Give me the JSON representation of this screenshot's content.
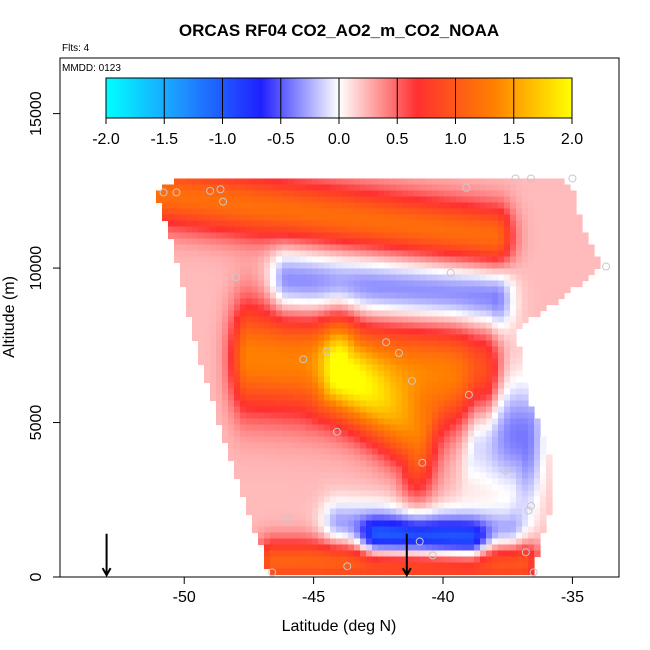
{
  "chart_data": {
    "type": "heatmap",
    "title": "ORCAS RF04 CO2_AO2_m_CO2_NOAA",
    "flights_label": "Flts: 4",
    "date_label": "MMDD: 0123",
    "xlabel": "Latitude (deg N)",
    "ylabel": "Altitude (m)",
    "xlim": [
      -54.8,
      -33.2
    ],
    "ylim": [
      0,
      16800
    ],
    "x_ticks": [
      -50,
      -45,
      -40,
      -35
    ],
    "x_tick_labels": [
      "-50",
      "-45",
      "-40",
      "-35"
    ],
    "y_ticks": [
      0,
      5000,
      10000,
      15000
    ],
    "y_tick_labels": [
      "0",
      "5000",
      "10000",
      "15000"
    ],
    "colorbar": {
      "range": [
        -2.0,
        2.0
      ],
      "ticks": [
        -2.0,
        -1.5,
        -1.0,
        -0.5,
        0.0,
        0.5,
        1.0,
        1.5,
        2.0
      ],
      "tick_labels": [
        "-2.0",
        "-1.5",
        "-1.0",
        "-0.5",
        "0.0",
        "0.5",
        "1.0",
        "1.5",
        "2.0"
      ],
      "colors": [
        "#00ffff",
        "#1e90ff",
        "#2020ff",
        "#ffffff",
        "#ff3030",
        "#ff8000",
        "#ffff00"
      ]
    },
    "domain_edges": {
      "altitude": [
        0,
        1000,
        2000,
        4000,
        6000,
        8000,
        10000,
        11500,
        12500,
        12900
      ],
      "left_lat": [
        -46.6,
        -46.9,
        -47.4,
        -48.2,
        -48.9,
        -49.6,
        -50.1,
        -50.6,
        -51.0,
        -50.0
      ],
      "right_lat": [
        -36.6,
        -36.4,
        -36.0,
        -36.0,
        -36.9,
        -37.3,
        -34.0,
        -34.8,
        -35.1,
        -35.5
      ]
    },
    "anomaly_features": [
      {
        "name": "upper enhancement band",
        "lat_start": -51.0,
        "alt_start": 12400,
        "lat_end": -38.0,
        "alt_end": 11000,
        "width_m": 650,
        "peak_value": 1.1
      },
      {
        "name": "mid-level enhancement",
        "lat_start": -47.5,
        "alt_start": 7100,
        "lat_end": -38.5,
        "alt_end": 6500,
        "width_m": 1100,
        "peak_value": 1.25
      },
      {
        "name": "mid-level lobe",
        "lat_start": -44.0,
        "alt_start": 6500,
        "lat_end": -41.0,
        "alt_end": 4400,
        "width_m": 1200,
        "peak_value": 1.0
      },
      {
        "name": "near-surface band",
        "lat_start": -46.5,
        "alt_start": 500,
        "lat_end": -37.0,
        "alt_end": 500,
        "width_m": 450,
        "peak_value": 1.0
      },
      {
        "name": "low-level depletion",
        "lat_start": -42.5,
        "alt_start": 1200,
        "lat_end": -39.0,
        "alt_end": 1100,
        "width_m": 380,
        "peak_value": -0.9
      },
      {
        "name": "clean layer",
        "lat_start": -46.0,
        "alt_start": 9500,
        "lat_end": -38.0,
        "alt_end": 9000,
        "width_m": 700,
        "peak_value": -0.55
      },
      {
        "name": "clean low layer",
        "lat_start": -44.0,
        "alt_start": 1700,
        "lat_end": -37.5,
        "alt_end": 1400,
        "width_m": 500,
        "peak_value": -0.4
      },
      {
        "name": "clean east lobe",
        "lat_start": -38.5,
        "alt_start": 5000,
        "lat_end": -36.8,
        "alt_end": 4500,
        "width_m": 1500,
        "peak_value": -0.5
      }
    ],
    "background_value": 0.22,
    "sample_points": [
      {
        "lat": -50.8,
        "alt": 12450
      },
      {
        "lat": -50.3,
        "alt": 12450
      },
      {
        "lat": -49.0,
        "alt": 12500
      },
      {
        "lat": -48.6,
        "alt": 12550
      },
      {
        "lat": -48.5,
        "alt": 12150
      },
      {
        "lat": -39.1,
        "alt": 12600
      },
      {
        "lat": -37.2,
        "alt": 12900
      },
      {
        "lat": -36.6,
        "alt": 12900
      },
      {
        "lat": -35.0,
        "alt": 12900
      },
      {
        "lat": -48.0,
        "alt": 9700
      },
      {
        "lat": -39.7,
        "alt": 9850
      },
      {
        "lat": -33.7,
        "alt": 10050
      },
      {
        "lat": -42.2,
        "alt": 7600
      },
      {
        "lat": -44.5,
        "alt": 7300
      },
      {
        "lat": -45.4,
        "alt": 7050
      },
      {
        "lat": -41.7,
        "alt": 7250
      },
      {
        "lat": -41.2,
        "alt": 6350
      },
      {
        "lat": -39.0,
        "alt": 5900
      },
      {
        "lat": -44.1,
        "alt": 4700
      },
      {
        "lat": -40.8,
        "alt": 3700
      },
      {
        "lat": -37.6,
        "alt": 3450
      },
      {
        "lat": -36.6,
        "alt": 2300
      },
      {
        "lat": -36.7,
        "alt": 2150
      },
      {
        "lat": -46.0,
        "alt": 1850
      },
      {
        "lat": -36.8,
        "alt": 800
      },
      {
        "lat": -40.4,
        "alt": 700
      },
      {
        "lat": -43.7,
        "alt": 350
      },
      {
        "lat": -46.6,
        "alt": 150
      },
      {
        "lat": -36.5,
        "alt": 150
      },
      {
        "lat": -40.9,
        "alt": 1150
      }
    ],
    "arrow_markers": [
      -53.0,
      -41.4
    ]
  }
}
